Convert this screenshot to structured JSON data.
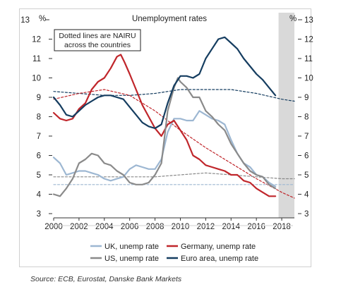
{
  "chart_data": {
    "type": "line",
    "title": "Unemployment rates",
    "left_unit": "%",
    "right_unit": "%",
    "ylim": [
      3,
      13
    ],
    "xlim": [
      2000,
      2019
    ],
    "yticks": [
      3,
      4,
      5,
      6,
      7,
      8,
      9,
      10,
      11,
      12,
      13
    ],
    "xticks": [
      2000,
      2002,
      2004,
      2006,
      2008,
      2010,
      2012,
      2014,
      2016,
      2018
    ],
    "annotation": "Dotted lines are NAIRU\nacross the countries",
    "shaded_forecast_region": [
      2017.75,
      2019
    ],
    "grid": false,
    "legend_position": "bottom",
    "series": [
      {
        "name": "UK, unemp rate",
        "color": "#9db7d2",
        "style": "solid",
        "x": [
          2000,
          2000.5,
          2001,
          2001.5,
          2002,
          2002.5,
          2003,
          2003.5,
          2004,
          2004.5,
          2005,
          2005.5,
          2006,
          2006.5,
          2007,
          2007.5,
          2008,
          2008.5,
          2009,
          2009.5,
          2010,
          2010.5,
          2011,
          2011.5,
          2012,
          2012.5,
          2013,
          2013.5,
          2014,
          2014.5,
          2015,
          2015.5,
          2016,
          2016.5,
          2017,
          2017.5
        ],
        "y": [
          5.9,
          5.6,
          5.0,
          5.1,
          5.2,
          5.2,
          5.1,
          5.0,
          4.8,
          4.7,
          4.8,
          4.9,
          5.3,
          5.5,
          5.4,
          5.3,
          5.3,
          5.8,
          7.2,
          7.9,
          7.9,
          7.8,
          7.8,
          8.3,
          8.1,
          7.9,
          7.8,
          7.6,
          6.8,
          6.1,
          5.6,
          5.4,
          5.0,
          4.9,
          4.6,
          4.4
        ]
      },
      {
        "name": "Germany, unemp rate",
        "color": "#c0262b",
        "style": "solid",
        "x": [
          2000,
          2000.5,
          2001,
          2001.5,
          2002,
          2002.5,
          2003,
          2003.5,
          2004,
          2004.5,
          2005,
          2005.3,
          2005.6,
          2006,
          2006.5,
          2007,
          2007.5,
          2008,
          2008.5,
          2009,
          2009.5,
          2010,
          2010.5,
          2011,
          2011.5,
          2012,
          2012.5,
          2013,
          2013.5,
          2014,
          2014.5,
          2015,
          2015.5,
          2016,
          2016.5,
          2017,
          2017.5
        ],
        "y": [
          8.2,
          7.9,
          7.8,
          7.9,
          8.4,
          8.7,
          9.4,
          9.8,
          10.0,
          10.5,
          11.1,
          11.2,
          10.8,
          10.2,
          9.4,
          8.6,
          8.0,
          7.4,
          7.0,
          7.6,
          7.8,
          7.3,
          6.8,
          6.0,
          5.8,
          5.5,
          5.4,
          5.3,
          5.2,
          5.0,
          5.0,
          4.7,
          4.6,
          4.3,
          4.1,
          3.9,
          3.9
        ]
      },
      {
        "name": "US, unemp rate",
        "color": "#8a8a8a",
        "style": "solid",
        "x": [
          2000,
          2000.5,
          2001,
          2001.5,
          2002,
          2002.5,
          2003,
          2003.5,
          2004,
          2004.5,
          2005,
          2005.5,
          2006,
          2006.5,
          2007,
          2007.5,
          2008,
          2008.5,
          2009,
          2009.5,
          2009.8,
          2010,
          2010.5,
          2011,
          2011.5,
          2012,
          2012.5,
          2013,
          2013.5,
          2014,
          2014.5,
          2015,
          2015.5,
          2016,
          2016.5,
          2017,
          2017.5
        ],
        "y": [
          4.0,
          3.9,
          4.3,
          4.8,
          5.6,
          5.8,
          6.1,
          6.0,
          5.6,
          5.5,
          5.2,
          5.0,
          4.6,
          4.5,
          4.5,
          4.6,
          5.0,
          5.6,
          8.3,
          9.5,
          10.0,
          9.8,
          9.5,
          9.0,
          9.0,
          8.3,
          8.0,
          7.6,
          7.3,
          6.6,
          6.1,
          5.6,
          5.2,
          5.0,
          4.9,
          4.5,
          4.3
        ]
      },
      {
        "name": "Euro area, unemp rate",
        "color": "#153d60",
        "style": "solid",
        "x": [
          2000,
          2000.5,
          2001,
          2001.5,
          2002,
          2002.5,
          2003,
          2003.5,
          2004,
          2004.5,
          2005,
          2005.5,
          2006,
          2006.5,
          2007,
          2007.5,
          2008,
          2008.5,
          2009,
          2009.5,
          2010,
          2010.5,
          2011,
          2011.5,
          2012,
          2012.5,
          2013,
          2013.5,
          2014,
          2014.5,
          2015,
          2015.5,
          2016,
          2016.5,
          2017,
          2017.5
        ],
        "y": [
          9.0,
          8.6,
          8.1,
          8.0,
          8.3,
          8.6,
          8.8,
          9.0,
          9.1,
          9.1,
          9.0,
          8.9,
          8.5,
          8.1,
          7.7,
          7.5,
          7.4,
          7.6,
          8.7,
          9.6,
          10.1,
          10.1,
          10.0,
          10.2,
          11.0,
          11.5,
          12.0,
          12.1,
          11.8,
          11.5,
          11.0,
          10.6,
          10.2,
          9.9,
          9.5,
          9.1
        ]
      },
      {
        "name": "",
        "color": "#153d60",
        "style": "dotted",
        "x": [
          2000,
          2002,
          2004,
          2006,
          2008,
          2010,
          2012,
          2014,
          2016,
          2018,
          2019
        ],
        "y": [
          9.3,
          9.2,
          9.1,
          9.1,
          9.2,
          9.4,
          9.4,
          9.4,
          9.2,
          8.9,
          8.8
        ]
      },
      {
        "name": "",
        "color": "#c0262b",
        "style": "dotted",
        "x": [
          2000,
          2002,
          2004,
          2006,
          2008,
          2010,
          2012,
          2014,
          2016,
          2018,
          2019
        ],
        "y": [
          8.9,
          9.2,
          9.4,
          9.1,
          8.3,
          7.3,
          6.4,
          5.6,
          4.8,
          4.1,
          3.8
        ]
      },
      {
        "name": "",
        "color": "#8a8a8a",
        "style": "dotted",
        "x": [
          2000,
          2004,
          2008,
          2010,
          2012,
          2014,
          2016,
          2018,
          2019
        ],
        "y": [
          4.9,
          4.9,
          4.9,
          5.0,
          5.1,
          5.0,
          4.9,
          4.8,
          4.8
        ]
      },
      {
        "name": "",
        "color": "#9db7d2",
        "style": "dotted",
        "x": [
          2000,
          2004,
          2008,
          2012,
          2016,
          2019
        ],
        "y": [
          4.5,
          4.5,
          4.5,
          4.5,
          4.5,
          4.5
        ]
      }
    ],
    "legend": [
      {
        "label": "UK, unemp rate",
        "color": "#9db7d2"
      },
      {
        "label": "Germany, unemp rate",
        "color": "#c0262b"
      },
      {
        "label": "US, unemp rate",
        "color": "#8a8a8a"
      },
      {
        "label": "Euro area, unemp rate",
        "color": "#153d60"
      }
    ]
  },
  "source_note": "Source: ECB, Eurostat, Danske Bank Markets"
}
